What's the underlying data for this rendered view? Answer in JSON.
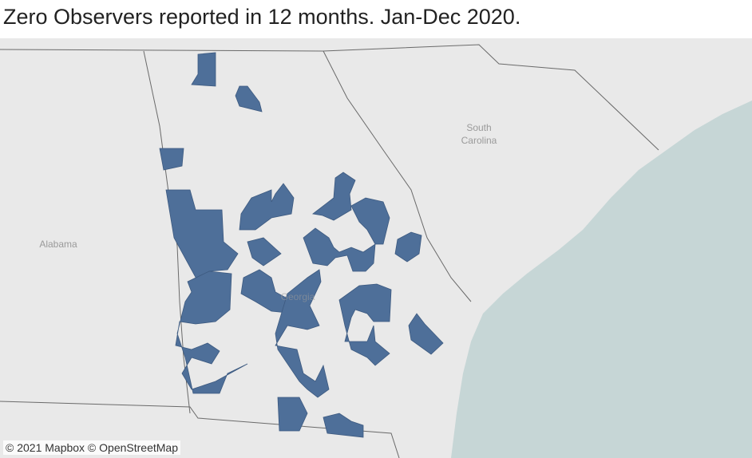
{
  "header": {
    "title": "Zero Observers reported in 12 months.  Jan-Dec 2020."
  },
  "map": {
    "labels": {
      "south_carolina": [
        "South",
        "Carolina"
      ],
      "alabama": "Alabama",
      "georgia": "Georgia"
    },
    "attribution": "© 2021 Mapbox © OpenStreetMap"
  }
}
